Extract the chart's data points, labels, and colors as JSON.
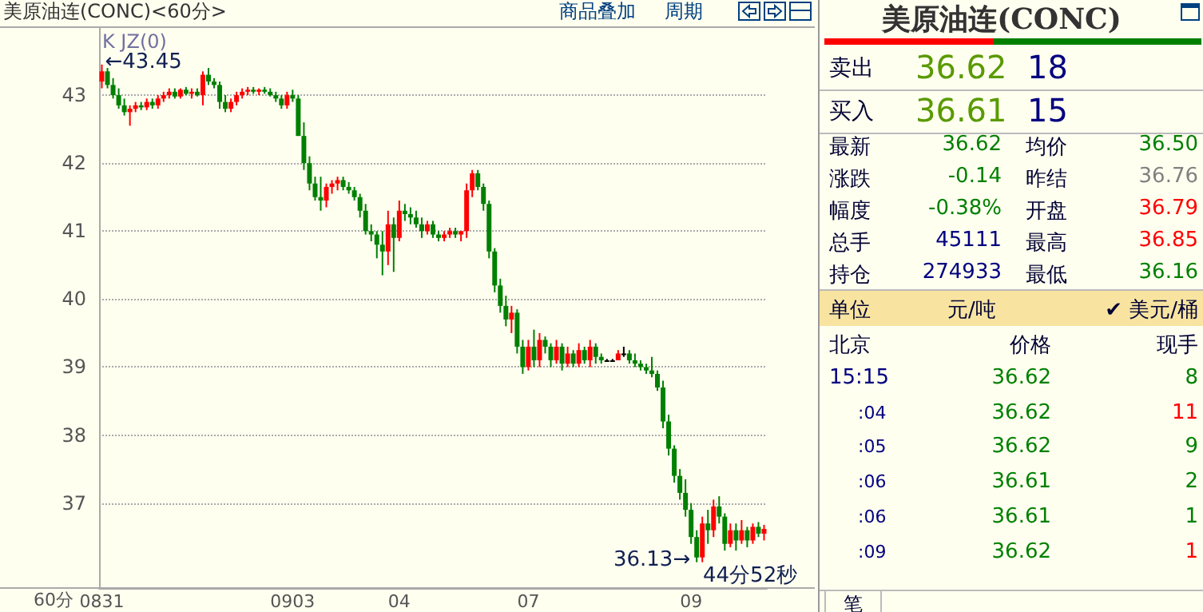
{
  "chart_data": [
    {
      "type": "candlestick",
      "title": "美原油连(CONC)<60分>",
      "xlabel": "60分",
      "categories": [
        "0831",
        null,
        null,
        null,
        null,
        null,
        null,
        null,
        null,
        null,
        null,
        null,
        null,
        null,
        null,
        null,
        null,
        null,
        null,
        null,
        null,
        null,
        null,
        null,
        null,
        null,
        null,
        null,
        null,
        null,
        null,
        null,
        null,
        null,
        "0903",
        null,
        null,
        null,
        null,
        null,
        null,
        null,
        null,
        null,
        null,
        null,
        null,
        null,
        null,
        null,
        null,
        null,
        null,
        "04",
        null,
        null,
        null,
        null,
        null,
        null,
        null,
        null,
        null,
        null,
        null,
        null,
        null,
        null,
        null,
        null,
        null,
        null,
        null,
        null,
        null,
        null,
        "07",
        null,
        null,
        null,
        null,
        null,
        null,
        null,
        null,
        null,
        null,
        null,
        null,
        null,
        null,
        null,
        null,
        null,
        null,
        null,
        null,
        null,
        null,
        null,
        null,
        null,
        null,
        null,
        null,
        "09",
        null,
        null,
        null,
        null,
        null,
        null,
        null,
        null,
        null,
        null,
        null,
        null,
        null
      ],
      "ohlc": [
        [
          43.2,
          43.45,
          43.1,
          43.35
        ],
        [
          43.35,
          43.4,
          43.1,
          43.15
        ],
        [
          43.15,
          43.25,
          42.95,
          43.0
        ],
        [
          43.0,
          43.1,
          42.8,
          42.85
        ],
        [
          42.85,
          42.95,
          42.7,
          42.75
        ],
        [
          42.75,
          42.85,
          42.55,
          42.8
        ],
        [
          42.8,
          42.9,
          42.75,
          42.85
        ],
        [
          42.85,
          42.9,
          42.78,
          42.82
        ],
        [
          42.82,
          42.95,
          42.78,
          42.9
        ],
        [
          42.9,
          42.95,
          42.8,
          42.85
        ],
        [
          42.85,
          43.0,
          42.8,
          42.95
        ],
        [
          42.95,
          43.05,
          42.9,
          43.0
        ],
        [
          43.0,
          43.1,
          42.95,
          43.05
        ],
        [
          43.05,
          43.1,
          42.95,
          42.98
        ],
        [
          42.98,
          43.1,
          42.95,
          43.08
        ],
        [
          43.08,
          43.12,
          43.0,
          43.02
        ],
        [
          43.02,
          43.1,
          42.95,
          43.05
        ],
        [
          43.05,
          43.1,
          42.98,
          43.0
        ],
        [
          43.0,
          43.35,
          42.85,
          43.3
        ],
        [
          43.3,
          43.4,
          43.15,
          43.2
        ],
        [
          43.2,
          43.25,
          43.1,
          43.15
        ],
        [
          43.15,
          43.2,
          42.8,
          42.9
        ],
        [
          42.9,
          43.0,
          42.75,
          42.8
        ],
        [
          42.8,
          42.95,
          42.75,
          42.9
        ],
        [
          42.9,
          43.05,
          42.85,
          43.0
        ],
        [
          43.0,
          43.1,
          42.95,
          43.05
        ],
        [
          43.05,
          43.12,
          43.0,
          43.08
        ],
        [
          43.08,
          43.12,
          43.02,
          43.05
        ],
        [
          43.05,
          43.1,
          43.0,
          43.08
        ],
        [
          43.08,
          43.12,
          43.02,
          43.05
        ],
        [
          43.05,
          43.1,
          42.98,
          43.0
        ],
        [
          43.0,
          43.05,
          42.9,
          42.95
        ],
        [
          42.95,
          43.0,
          42.8,
          42.85
        ],
        [
          42.85,
          43.05,
          42.8,
          43.0
        ],
        [
          43.0,
          43.08,
          42.9,
          42.95
        ],
        [
          42.95,
          43.0,
          42.4,
          42.4
        ],
        [
          42.4,
          42.6,
          41.9,
          42.0
        ],
        [
          42.0,
          42.1,
          41.6,
          41.7
        ],
        [
          41.7,
          41.8,
          41.45,
          41.5
        ],
        [
          41.5,
          41.8,
          41.3,
          41.45
        ],
        [
          41.45,
          41.7,
          41.35,
          41.65
        ],
        [
          41.65,
          41.75,
          41.55,
          41.7
        ],
        [
          41.7,
          41.8,
          41.6,
          41.75
        ],
        [
          41.75,
          41.8,
          41.6,
          41.65
        ],
        [
          41.65,
          41.72,
          41.55,
          41.6
        ],
        [
          41.6,
          41.65,
          41.45,
          41.5
        ],
        [
          41.5,
          41.55,
          41.2,
          41.3
        ],
        [
          41.3,
          41.4,
          40.95,
          41.0
        ],
        [
          41.0,
          41.1,
          40.85,
          40.95
        ],
        [
          40.95,
          41.0,
          40.6,
          40.8
        ],
        [
          40.8,
          41.0,
          40.35,
          40.7
        ],
        [
          40.7,
          41.3,
          40.5,
          41.1
        ],
        [
          41.1,
          41.2,
          40.4,
          40.9
        ],
        [
          40.9,
          41.45,
          40.85,
          41.3
        ],
        [
          41.3,
          41.4,
          41.15,
          41.25
        ],
        [
          41.25,
          41.35,
          41.1,
          41.2
        ],
        [
          41.2,
          41.3,
          41.05,
          41.1
        ],
        [
          41.1,
          41.2,
          40.9,
          41.0
        ],
        [
          41.0,
          41.15,
          40.95,
          41.1
        ],
        [
          41.1,
          41.15,
          40.9,
          40.95
        ],
        [
          40.95,
          41.0,
          40.85,
          40.9
        ],
        [
          40.9,
          41.0,
          40.85,
          40.95
        ],
        [
          40.95,
          41.05,
          40.9,
          41.0
        ],
        [
          41.0,
          41.05,
          40.9,
          40.95
        ],
        [
          40.95,
          41.0,
          40.85,
          41.0
        ],
        [
          41.0,
          41.7,
          40.9,
          41.6
        ],
        [
          41.6,
          41.9,
          41.5,
          41.85
        ],
        [
          41.85,
          41.9,
          41.6,
          41.65
        ],
        [
          41.65,
          41.7,
          41.3,
          41.4
        ],
        [
          41.4,
          41.45,
          40.6,
          40.7
        ],
        [
          40.7,
          40.75,
          40.1,
          40.2
        ],
        [
          40.2,
          40.3,
          39.8,
          39.9
        ],
        [
          39.9,
          40.05,
          39.6,
          39.7
        ],
        [
          39.7,
          39.9,
          39.5,
          39.8
        ],
        [
          39.8,
          39.85,
          39.2,
          39.3
        ],
        [
          39.3,
          39.4,
          38.9,
          39.0
        ],
        [
          39.0,
          39.4,
          38.95,
          39.3
        ],
        [
          39.3,
          39.55,
          39.0,
          39.1
        ],
        [
          39.1,
          39.5,
          39.0,
          39.4
        ],
        [
          39.4,
          39.45,
          39.2,
          39.3
        ],
        [
          39.3,
          39.35,
          39.0,
          39.1
        ],
        [
          39.1,
          39.4,
          39.05,
          39.3
        ],
        [
          39.3,
          39.35,
          38.95,
          39.05
        ],
        [
          39.05,
          39.3,
          39.0,
          39.2
        ],
        [
          39.2,
          39.25,
          39.0,
          39.05
        ],
        [
          39.05,
          39.35,
          39.0,
          39.25
        ],
        [
          39.25,
          39.3,
          39.05,
          39.1
        ],
        [
          39.1,
          39.4,
          39.0,
          39.3
        ],
        [
          39.3,
          39.35,
          39.05,
          39.15
        ],
        [
          39.15,
          39.2,
          39.05,
          39.1
        ],
        [
          39.1,
          39.12,
          39.08,
          39.1
        ],
        [
          39.1,
          39.12,
          39.08,
          39.1
        ],
        [
          39.1,
          39.25,
          39.1,
          39.2
        ],
        [
          39.2,
          39.3,
          39.15,
          39.2
        ],
        [
          39.2,
          39.25,
          39.05,
          39.1
        ],
        [
          39.1,
          39.2,
          39.0,
          39.05
        ],
        [
          39.05,
          39.1,
          38.95,
          39.0
        ],
        [
          39.0,
          39.05,
          38.9,
          38.95
        ],
        [
          38.95,
          39.15,
          38.85,
          38.9
        ],
        [
          38.9,
          38.95,
          38.65,
          38.7
        ],
        [
          38.7,
          38.8,
          38.1,
          38.2
        ],
        [
          38.2,
          38.3,
          37.7,
          37.8
        ],
        [
          37.8,
          37.85,
          37.3,
          37.4
        ],
        [
          37.4,
          37.5,
          37.05,
          37.15
        ],
        [
          37.15,
          37.35,
          36.8,
          36.9
        ],
        [
          36.9,
          37.0,
          36.4,
          36.5
        ],
        [
          36.5,
          36.6,
          36.13,
          36.2
        ],
        [
          36.2,
          36.8,
          36.13,
          36.7
        ],
        [
          36.7,
          36.9,
          36.4,
          36.6
        ],
        [
          36.6,
          37.05,
          36.5,
          36.95
        ],
        [
          36.95,
          37.1,
          36.7,
          36.8
        ],
        [
          36.8,
          36.85,
          36.3,
          36.4
        ],
        [
          36.4,
          36.7,
          36.35,
          36.6
        ],
        [
          36.6,
          36.7,
          36.3,
          36.45
        ],
        [
          36.45,
          36.75,
          36.4,
          36.6
        ],
        [
          36.6,
          36.65,
          36.35,
          36.45
        ],
        [
          36.45,
          36.7,
          36.4,
          36.65
        ],
        [
          36.65,
          36.72,
          36.5,
          36.55
        ],
        [
          36.55,
          36.68,
          36.45,
          36.62
        ]
      ],
      "colors": [
        "#ff0000",
        "#008000",
        "#008000",
        "#008000",
        "#008000",
        "#ff0000",
        "#ff0000",
        "#008000",
        "#ff0000",
        "#008000",
        "#ff0000",
        "#ff0000",
        "#ff0000",
        "#008000",
        "#ff0000",
        "#008000",
        "#ff0000",
        "#008000",
        "#ff0000",
        "#008000",
        "#008000",
        "#008000",
        "#008000",
        "#ff0000",
        "#ff0000",
        "#ff0000",
        "#ff0000",
        "#008000",
        "#ff0000",
        "#008000",
        "#008000",
        "#008000",
        "#008000",
        "#ff0000",
        "#008000",
        "#008000",
        "#008000",
        "#008000",
        "#008000",
        "#008000",
        "#ff0000",
        "#ff0000",
        "#ff0000",
        "#008000",
        "#008000",
        "#008000",
        "#008000",
        "#008000",
        "#008000",
        "#008000",
        "#008000",
        "#ff0000",
        "#008000",
        "#ff0000",
        "#008000",
        "#008000",
        "#008000",
        "#008000",
        "#ff0000",
        "#008000",
        "#008000",
        "#ff0000",
        "#ff0000",
        "#008000",
        "#ff0000",
        "#ff0000",
        "#ff0000",
        "#008000",
        "#008000",
        "#008000",
        "#008000",
        "#008000",
        "#008000",
        "#ff0000",
        "#008000",
        "#008000",
        "#ff0000",
        "#008000",
        "#ff0000",
        "#008000",
        "#008000",
        "#ff0000",
        "#008000",
        "#ff0000",
        "#008000",
        "#ff0000",
        "#008000",
        "#ff0000",
        "#008000",
        "#008000",
        "#000000",
        "#000000",
        "#ff0000",
        "#000000",
        "#008000",
        "#008000",
        "#008000",
        "#008000",
        "#008000",
        "#008000",
        "#008000",
        "#008000",
        "#008000",
        "#008000",
        "#008000",
        "#008000",
        "#008000",
        "#ff0000",
        "#008000",
        "#ff0000",
        "#008000",
        "#008000",
        "#ff0000",
        "#008000",
        "#ff0000",
        "#008000",
        "#ff0000",
        "#008000",
        "#ff0000"
      ],
      "ylim": [
        35.75,
        44
      ],
      "yticks": [
        37,
        38,
        39,
        40,
        41,
        42,
        43
      ],
      "grid": "y",
      "annotations": [
        "K JZ(0)",
        "←43.45",
        "36.13→",
        "44分52秒",
        "商品叠加",
        "周期"
      ]
    },
    {
      "type": "other",
      "title": "美原油连(CONC)",
      "annotations": [
        "卖出",
        "36.62",
        "18",
        "买入",
        "36.61",
        "15",
        "最新",
        "36.62",
        "均价",
        "36.50",
        "涨跌",
        "-0.14",
        "昨结",
        "36.76",
        "幅度",
        "-0.38%",
        "开盘",
        "36.79",
        "总手",
        "45111",
        "最高",
        "36.85",
        "持仓",
        "274933",
        "最低",
        "36.16",
        "单位",
        "元/吨",
        "✔ 美元/桶",
        "北京",
        "价格",
        "现手",
        "15:15",
        "36.62",
        "8",
        ":04",
        "36.62",
        "11",
        ":05",
        "36.62",
        "9",
        ":06",
        "36.61",
        "2",
        ":06",
        "36.61",
        "1",
        ":09",
        "36.62",
        "1",
        "笔"
      ],
      "colors": [
        "#000033",
        "#5a9a00",
        "#000080",
        "#000033",
        "#5a9a00",
        "#000080",
        "#000033",
        "#008000",
        "#000033",
        "#008000",
        "#000033",
        "#008000",
        "#000033",
        "#808080",
        "#000033",
        "#008000",
        "#000033",
        "#ff0000",
        "#000033",
        "#000080",
        "#000033",
        "#ff0000",
        "#000033",
        "#000080",
        "#000033",
        "#008000",
        "#000033",
        "#000033",
        "#000033",
        "#000033",
        "#000033",
        "#000033",
        "#000080",
        "#008000",
        "#008000",
        "#000080",
        "#008000",
        "#ff0000",
        "#000080",
        "#008000",
        "#008000",
        "#000080",
        "#008000",
        "#008000",
        "#000080",
        "#008000",
        "#008000",
        "#000080",
        "#008000",
        "#ff0000",
        "#000033"
      ]
    }
  ]
}
